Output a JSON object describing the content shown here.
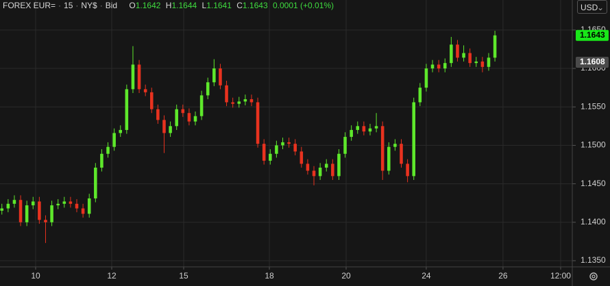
{
  "header": {
    "symbol": "FOREX EUR=",
    "interval": "15",
    "timezone": "NY$",
    "price_type": "Bid",
    "open_label": "O",
    "open": "1.1642",
    "high_label": "H",
    "high": "1.1644",
    "low_label": "L",
    "low": "1.1641",
    "close_label": "C",
    "close": "1.1643",
    "change": "0.0001",
    "change_pct": "(+0.01%)",
    "currency": "USD"
  },
  "chart_data": {
    "type": "candlestick",
    "up_color": "#5ee82b",
    "down_color": "#e8321f",
    "grid": true,
    "x": [
      0,
      1,
      2,
      3,
      4,
      5,
      6,
      7,
      8,
      9,
      10,
      11,
      12,
      13,
      14,
      15,
      16,
      17,
      18,
      19,
      20,
      21,
      22,
      23,
      24,
      25,
      26,
      27,
      28,
      29,
      30,
      31,
      32,
      33,
      34,
      35,
      36,
      37,
      38,
      39,
      40,
      41,
      42,
      43,
      44,
      45,
      46,
      47,
      48,
      49,
      50,
      51,
      52,
      53,
      54,
      55,
      56,
      57,
      58,
      59,
      60,
      61,
      62,
      63,
      64,
      65,
      66,
      67,
      68,
      69,
      70,
      71,
      72,
      73,
      74,
      75,
      76,
      77,
      78,
      79
    ],
    "open": [
      1.1415,
      1.1418,
      1.1424,
      1.1429,
      1.14,
      1.1422,
      1.1427,
      1.1403,
      1.14,
      1.1422,
      1.1424,
      1.1427,
      1.1424,
      1.1418,
      1.1411,
      1.1431,
      1.1471,
      1.1489,
      1.1498,
      1.1516,
      1.152,
      1.1573,
      1.1605,
      1.1573,
      1.1569,
      1.1547,
      1.1533,
      1.1516,
      1.1525,
      1.1547,
      1.1542,
      1.1531,
      1.1538,
      1.1565,
      1.1582,
      1.16,
      1.1578,
      1.1556,
      1.1554,
      1.1557,
      1.156,
      1.1556,
      1.1502,
      1.148,
      1.1489,
      1.15,
      1.1504,
      1.1502,
      1.1492,
      1.1476,
      1.1467,
      1.146,
      1.1471,
      1.1476,
      1.146,
      1.1489,
      1.1511,
      1.152,
      1.1525,
      1.1518,
      1.1522,
      1.1525,
      1.1467,
      1.1498,
      1.1502,
      1.1476,
      1.146,
      1.1556,
      1.1575,
      1.16,
      1.1605,
      1.16,
      1.1607,
      1.1631,
      1.1614,
      1.162,
      1.1607,
      1.1609,
      1.1602,
      1.1614
    ],
    "high": [
      1.1424,
      1.143,
      1.1435,
      1.1435,
      1.1428,
      1.1433,
      1.1433,
      1.1409,
      1.1428,
      1.143,
      1.1433,
      1.1433,
      1.143,
      1.1424,
      1.1437,
      1.1477,
      1.1495,
      1.1504,
      1.1522,
      1.1526,
      1.1579,
      1.1629,
      1.1611,
      1.1579,
      1.1575,
      1.1553,
      1.1539,
      1.1531,
      1.1553,
      1.1553,
      1.1548,
      1.1544,
      1.1571,
      1.1588,
      1.1612,
      1.1606,
      1.1584,
      1.1562,
      1.1563,
      1.1566,
      1.1566,
      1.1562,
      1.1508,
      1.1495,
      1.1506,
      1.151,
      1.151,
      1.1508,
      1.1498,
      1.1482,
      1.1473,
      1.1477,
      1.1482,
      1.1482,
      1.1495,
      1.1517,
      1.1526,
      1.1531,
      1.1531,
      1.1528,
      1.1542,
      1.1531,
      1.1504,
      1.1508,
      1.1508,
      1.1482,
      1.1562,
      1.1581,
      1.1606,
      1.1611,
      1.1611,
      1.1613,
      1.1641,
      1.1637,
      1.163,
      1.1626,
      1.1615,
      1.1615,
      1.162,
      1.1649
    ],
    "low": [
      1.141,
      1.1413,
      1.1419,
      1.1395,
      1.1395,
      1.1417,
      1.1398,
      1.1373,
      1.1395,
      1.1417,
      1.1419,
      1.1419,
      1.1413,
      1.1406,
      1.1406,
      1.1426,
      1.1466,
      1.1484,
      1.1493,
      1.1511,
      1.1515,
      1.1568,
      1.1568,
      1.1564,
      1.1542,
      1.1528,
      1.149,
      1.1511,
      1.152,
      1.1537,
      1.1526,
      1.1526,
      1.1533,
      1.156,
      1.1577,
      1.1573,
      1.1551,
      1.1549,
      1.1549,
      1.1552,
      1.1551,
      1.1497,
      1.1475,
      1.1475,
      1.1484,
      1.1495,
      1.1497,
      1.1487,
      1.1471,
      1.1462,
      1.1448,
      1.1455,
      1.1466,
      1.1455,
      1.1455,
      1.1484,
      1.1506,
      1.1515,
      1.1513,
      1.1513,
      1.1517,
      1.1455,
      1.1462,
      1.1493,
      1.1471,
      1.1452,
      1.1455,
      1.1551,
      1.157,
      1.1595,
      1.1595,
      1.1595,
      1.1602,
      1.1609,
      1.1609,
      1.1602,
      1.1602,
      1.1595,
      1.1597,
      1.1609
    ],
    "close": [
      1.1418,
      1.1424,
      1.1429,
      1.14,
      1.1422,
      1.1427,
      1.1403,
      1.14,
      1.1422,
      1.1424,
      1.1427,
      1.1424,
      1.1418,
      1.1411,
      1.1431,
      1.1471,
      1.1489,
      1.1498,
      1.1516,
      1.152,
      1.1573,
      1.1605,
      1.1573,
      1.1569,
      1.1547,
      1.1533,
      1.1516,
      1.1525,
      1.1547,
      1.1542,
      1.1531,
      1.1538,
      1.1565,
      1.1582,
      1.16,
      1.1578,
      1.1556,
      1.1554,
      1.1557,
      1.156,
      1.1556,
      1.1502,
      1.148,
      1.1489,
      1.15,
      1.1504,
      1.1502,
      1.1492,
      1.1476,
      1.1467,
      1.146,
      1.1471,
      1.1476,
      1.146,
      1.1489,
      1.1511,
      1.152,
      1.1525,
      1.1518,
      1.1522,
      1.1525,
      1.1467,
      1.1498,
      1.1502,
      1.1476,
      1.146,
      1.1556,
      1.1575,
      1.16,
      1.1605,
      1.16,
      1.1607,
      1.1631,
      1.1614,
      1.162,
      1.1607,
      1.1609,
      1.1602,
      1.1614,
      1.1643
    ],
    "xlim": [
      -0.3,
      91.4
    ],
    "xticks": [
      {
        "value": 5.41,
        "label": "10"
      },
      {
        "value": 17.6,
        "label": "12"
      },
      {
        "value": 29.13,
        "label": "15"
      },
      {
        "value": 42.86,
        "label": "18"
      },
      {
        "value": 55.16,
        "label": "20"
      },
      {
        "value": 68.0,
        "label": "24"
      },
      {
        "value": 80.3,
        "label": "26"
      },
      {
        "value": 89.53,
        "label": "12:00"
      }
    ],
    "ylim": [
      1.1342,
      1.1689
    ],
    "yticks": [
      {
        "value": 1.135,
        "label": "1.1350"
      },
      {
        "value": 1.14,
        "label": "1.1400"
      },
      {
        "value": 1.145,
        "label": "1.1450"
      },
      {
        "value": 1.15,
        "label": "1.1500"
      },
      {
        "value": 1.155,
        "label": "1.1550"
      },
      {
        "value": 1.16,
        "label": "1.1600"
      },
      {
        "value": 1.165,
        "label": "1.1650"
      }
    ],
    "price_markers": [
      {
        "value": 1.1643,
        "label": "1.1643",
        "color": "#19e619"
      },
      {
        "value": 1.1608,
        "label": "1.1608",
        "color": "#4a4a4a"
      }
    ]
  }
}
